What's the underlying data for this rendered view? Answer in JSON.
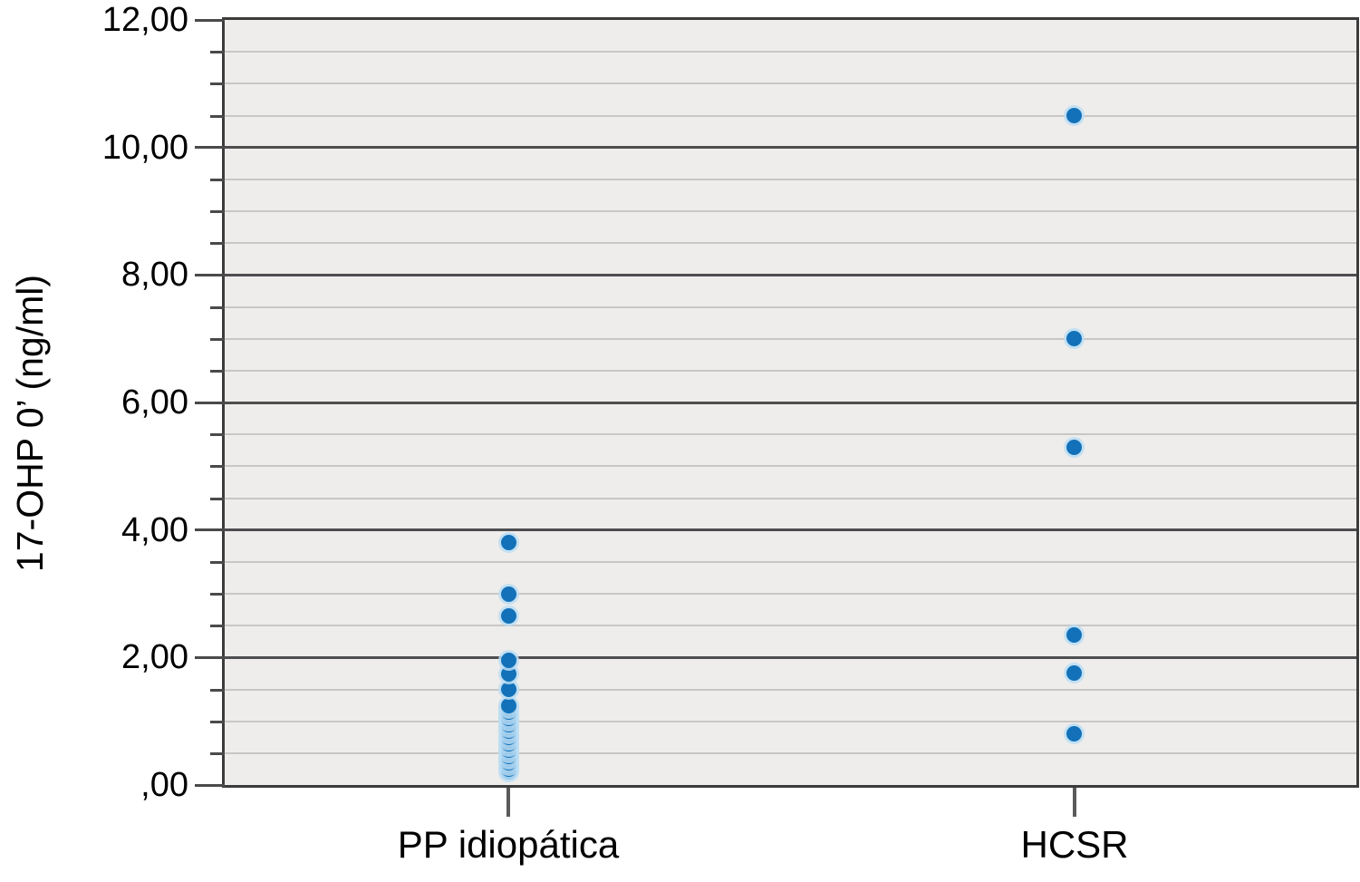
{
  "figure": {
    "background": "#ffffff",
    "title": ""
  },
  "chart_data": {
    "type": "scatter",
    "variant": "strip-plot",
    "title": "",
    "xlabel": "",
    "ylabel": "17-OHP 0’ (ng/ml)",
    "categories": [
      "PP idiopática",
      "HCSR"
    ],
    "series": [
      {
        "name": "PP idiopática",
        "values": [
          3.8,
          3.0,
          2.65,
          1.95,
          1.74,
          1.5,
          1.25,
          1.2,
          1.15,
          1.1,
          1.05,
          1.0,
          0.95,
          0.9,
          0.85,
          0.8,
          0.75,
          0.7,
          0.65,
          0.6,
          0.55,
          0.5,
          0.45,
          0.4,
          0.35,
          0.3,
          0.25,
          0.2
        ]
      },
      {
        "name": "HCSR",
        "values": [
          10.5,
          7.0,
          5.3,
          2.35,
          1.75,
          0.8
        ]
      }
    ],
    "ylim": [
      0,
      12
    ],
    "ytick_values": [
      0,
      2,
      4,
      6,
      8,
      10,
      12
    ],
    "ytick_labels": [
      ",00",
      "2,00",
      "4,00",
      "6,00",
      "8,00",
      "10,00",
      "12,00"
    ],
    "minor_tick_step": 0.5,
    "grid": "horizontal, major and minor lines",
    "legend": "none",
    "decimal_style": "comma",
    "colors": {
      "point_fill": "#1271b8",
      "point_halo": "#bedef3",
      "plot_background": "#eeedeb",
      "major_grid": "#4e4e50",
      "minor_grid": "#c8c7c5",
      "border": "#3b3b3b",
      "text": "#000000"
    }
  }
}
